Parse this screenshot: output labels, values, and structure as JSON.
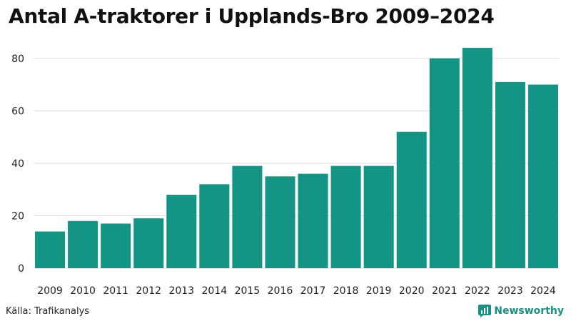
{
  "title": "Antal A-traktorer i Upplands-Bro 2009–2024",
  "source": "Källa: Trafikanalys",
  "brand": "Newsworthy",
  "colors": {
    "bar": "#149485",
    "brand": "#1a8f84",
    "grid": "#dddddd"
  },
  "icons": {
    "brand": "newsworthy-logo-icon"
  },
  "chart_data": {
    "type": "bar",
    "title": "Antal A-traktorer i Upplands-Bro 2009–2024",
    "xlabel": "",
    "ylabel": "",
    "categories": [
      "2009",
      "2010",
      "2011",
      "2012",
      "2013",
      "2014",
      "2015",
      "2016",
      "2017",
      "2018",
      "2019",
      "2020",
      "2021",
      "2022",
      "2023",
      "2024"
    ],
    "values": [
      14,
      18,
      17,
      19,
      28,
      32,
      39,
      35,
      36,
      39,
      39,
      52,
      80,
      84,
      71,
      70
    ],
    "ylim": [
      0,
      90
    ],
    "yticks": [
      0,
      20,
      40,
      60,
      80
    ],
    "grid": true,
    "legend": "none"
  }
}
